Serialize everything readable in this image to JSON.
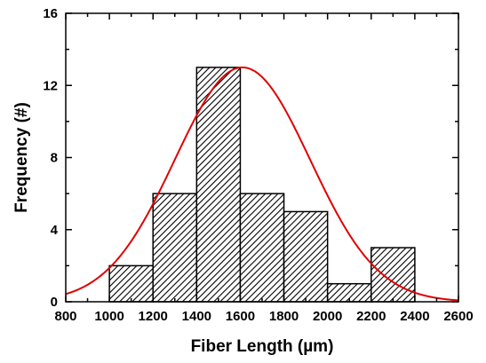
{
  "chart_data": {
    "type": "bar",
    "title": "",
    "xlabel": "Fiber Length (µm)",
    "ylabel": "Frequency (#)",
    "xlim": [
      800,
      2600
    ],
    "ylim": [
      0,
      16
    ],
    "xticks": [
      "800",
      "1000",
      "1200",
      "1400",
      "1600",
      "1800",
      "2000",
      "2200",
      "2400",
      "2600"
    ],
    "yticks": [
      "0",
      "4",
      "8",
      "12",
      "16"
    ],
    "bins": [
      {
        "from": 1000,
        "to": 1200,
        "value": 2
      },
      {
        "from": 1200,
        "to": 1400,
        "value": 6
      },
      {
        "from": 1400,
        "to": 1600,
        "value": 13
      },
      {
        "from": 1600,
        "to": 1800,
        "value": 6
      },
      {
        "from": 1800,
        "to": 2000,
        "value": 5
      },
      {
        "from": 2000,
        "to": 2200,
        "value": 1
      },
      {
        "from": 2200,
        "to": 2400,
        "value": 3
      }
    ],
    "fit": {
      "type": "gaussian",
      "mean": 1610,
      "sigma": 310,
      "peak": 13,
      "color": "#e00000"
    },
    "bar_fill": "hatched",
    "grid": false,
    "legend": "none"
  }
}
